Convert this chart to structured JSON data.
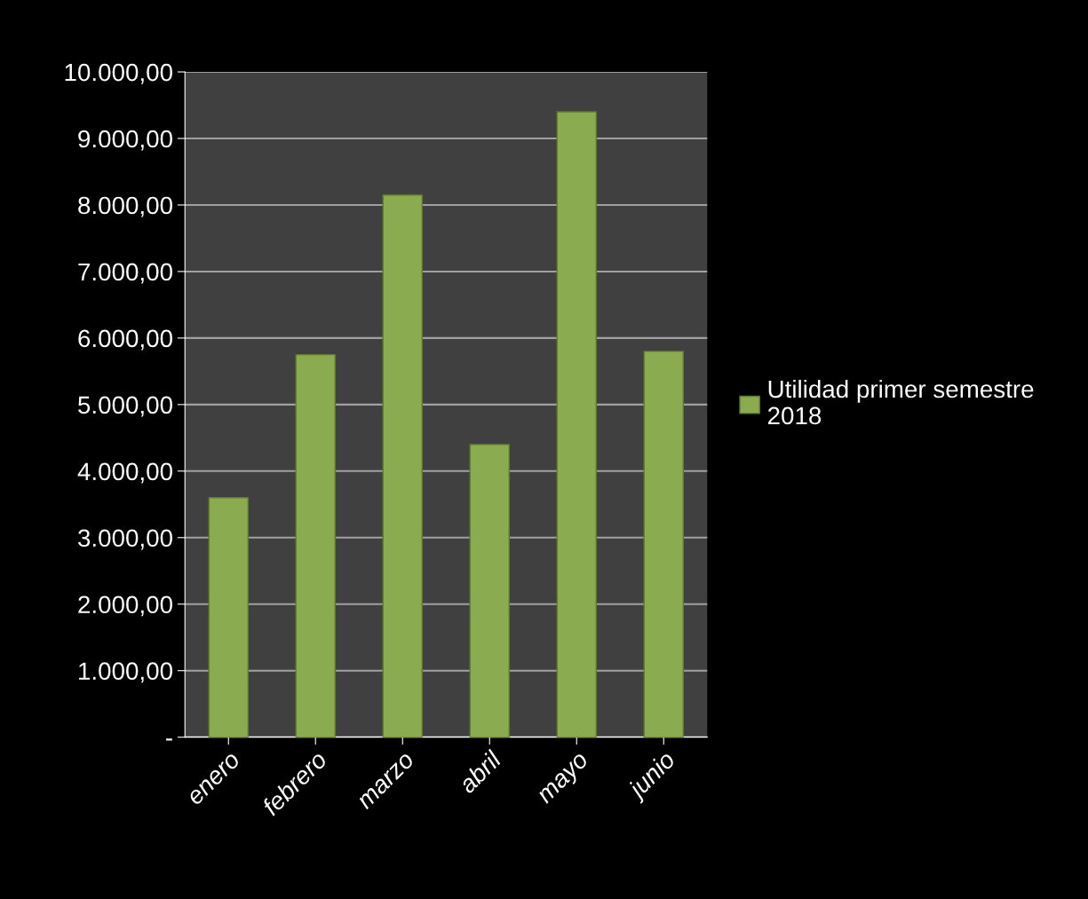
{
  "chart_data": {
    "type": "bar",
    "categories": [
      "enero",
      "febrero",
      "marzo",
      "abril",
      "mayo",
      "junio"
    ],
    "series": [
      {
        "name": "Utilidad primer semestre\n2018",
        "color": "#8aab4f",
        "values": [
          3600,
          5750,
          8150,
          4400,
          9400,
          5800
        ]
      }
    ],
    "ylim": [
      0,
      10000
    ],
    "yticks": [
      {
        "value": 0,
        "label": "-"
      },
      {
        "value": 1000,
        "label": "1.000,00"
      },
      {
        "value": 2000,
        "label": "2.000,00"
      },
      {
        "value": 3000,
        "label": "3.000,00"
      },
      {
        "value": 4000,
        "label": "4.000,00"
      },
      {
        "value": 5000,
        "label": "5.000,00"
      },
      {
        "value": 6000,
        "label": "6.000,00"
      },
      {
        "value": 7000,
        "label": "7.000,00"
      },
      {
        "value": 8000,
        "label": "8.000,00"
      },
      {
        "value": 9000,
        "label": "9.000,00"
      },
      {
        "value": 10000,
        "label": "10.000,00"
      }
    ],
    "grid": "y",
    "legend": "right"
  }
}
